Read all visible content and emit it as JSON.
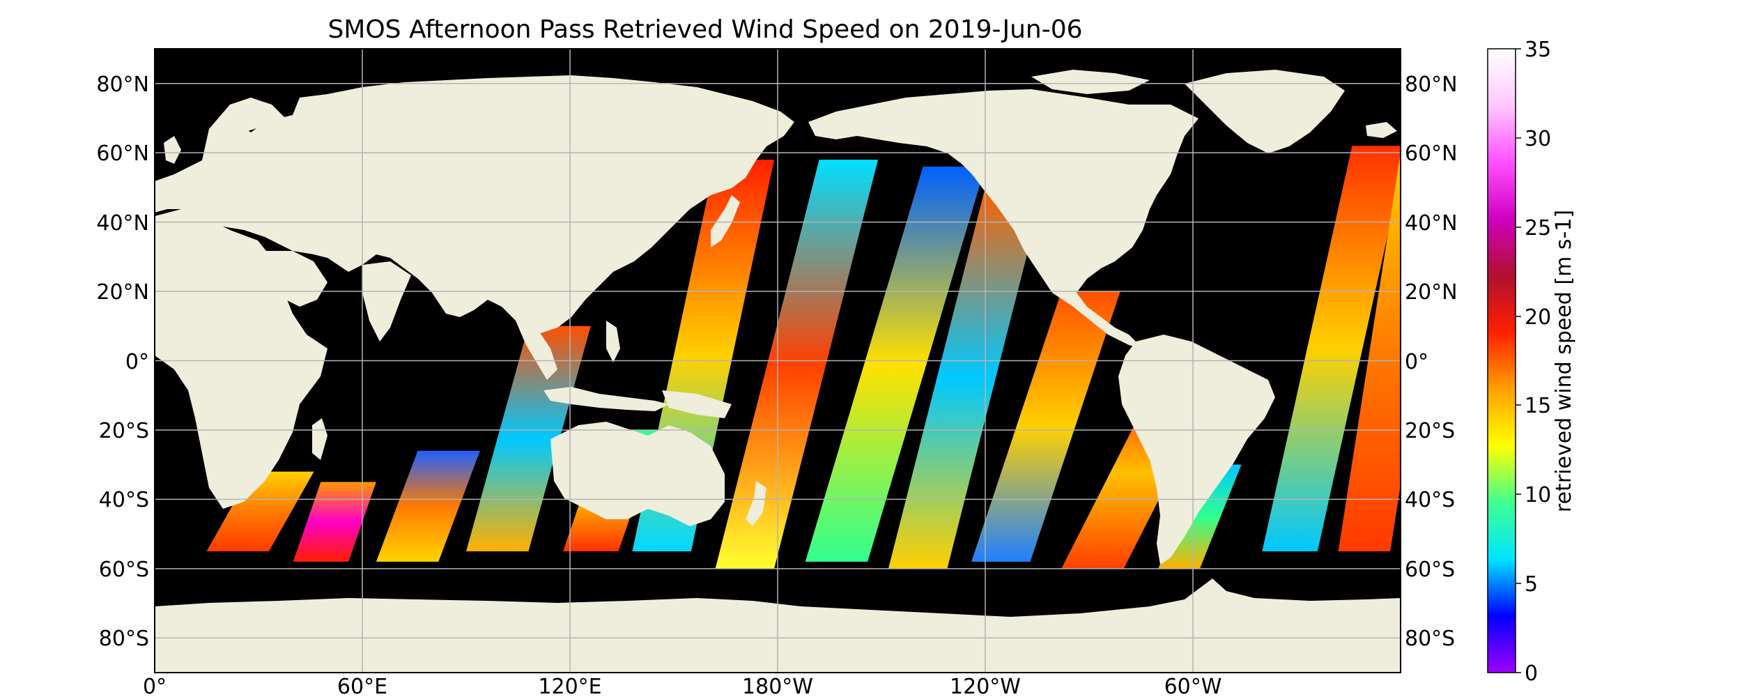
{
  "title": "SMOS Afternoon Pass Retrieved Wind Speed on 2019-Jun-06",
  "map": {
    "projection": "Plate Carree",
    "lon_range": [
      0,
      360
    ],
    "lat_range": [
      -90,
      90
    ],
    "gridlines": true,
    "ocean_color": "#000000",
    "land_color": "#efeddc"
  },
  "axes": {
    "lat_ticks": [
      "80°N",
      "60°N",
      "40°N",
      "20°N",
      "0°",
      "20°S",
      "40°S",
      "60°S",
      "80°S"
    ],
    "lon_ticks": [
      "0°",
      "60°E",
      "120°E",
      "180°W",
      "120°W",
      "60°W"
    ]
  },
  "colorbar": {
    "label": "retrieved wind speed [m s-1]",
    "ticks": [
      "0",
      "5",
      "10",
      "15",
      "20",
      "25",
      "30",
      "35"
    ],
    "range": [
      0,
      35
    ],
    "colormap": [
      "#a000ff",
      "#0000ff",
      "#00e5ff",
      "#40ff90",
      "#ffff00",
      "#ffa000",
      "#ff2000",
      "#b01030",
      "#d000c0",
      "#ff50ff",
      "#ffc8ff",
      "#ffffff"
    ]
  },
  "swaths": [
    {
      "name": "swath-indian-1",
      "region": "Southern Ocean / Indian",
      "colors": [
        "#ff3a00",
        "#ff7a00",
        "#ffd000"
      ]
    },
    {
      "name": "swath-indian-2",
      "region": "Southern Ocean / Indian",
      "colors": [
        "#ff1e00",
        "#ff00c8",
        "#ff9a00"
      ]
    },
    {
      "name": "swath-indian-3",
      "region": "Indian Ocean",
      "colors": [
        "#ffd400",
        "#ff7a00",
        "#2060ff"
      ]
    },
    {
      "name": "swath-indian-4",
      "region": "Indian Ocean",
      "colors": [
        "#ffb000",
        "#00c8ff",
        "#ff5000"
      ]
    },
    {
      "name": "swath-indian-5",
      "region": "Indian Ocean",
      "colors": [
        "#ff3000",
        "#ffd000",
        "#30ff90"
      ]
    },
    {
      "name": "swath-pacific-1",
      "region": "West Pacific",
      "colors": [
        "#00d8ff",
        "#ffd000",
        "#ff2000"
      ]
    },
    {
      "name": "swath-pacific-2",
      "region": "West Pacific",
      "colors": [
        "#ffff30",
        "#ff4000",
        "#00e0ff"
      ]
    },
    {
      "name": "swath-pacific-3",
      "region": "Central Pacific",
      "colors": [
        "#30ff90",
        "#ffe000",
        "#0060ff"
      ]
    },
    {
      "name": "swath-pacific-4",
      "region": "Central Pacific",
      "colors": [
        "#ffd000",
        "#00c8ff",
        "#ff6000"
      ]
    },
    {
      "name": "swath-pacific-5",
      "region": "East Pacific",
      "colors": [
        "#2080ff",
        "#ffd000",
        "#ff5000"
      ]
    },
    {
      "name": "swath-pacific-6",
      "region": "Southeast Pacific",
      "colors": [
        "#ff4000",
        "#ffc000",
        "#ff2000"
      ]
    },
    {
      "name": "swath-atlantic-1",
      "region": "South Atlantic",
      "colors": [
        "#ffb000",
        "#30ff90",
        "#00c8ff"
      ]
    },
    {
      "name": "swath-atlantic-2",
      "region": "North Atlantic",
      "colors": [
        "#00c8ff",
        "#ffd000",
        "#ff3000"
      ]
    }
  ]
}
